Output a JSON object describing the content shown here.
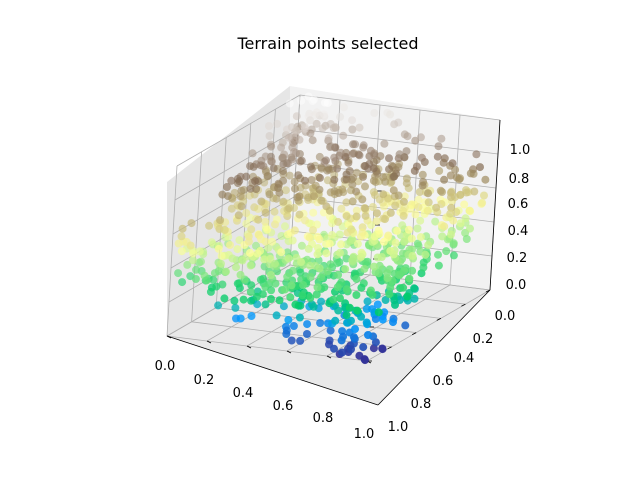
{
  "chart_data": {
    "type": "scatter",
    "title": "Terrain points selected",
    "xlabel": "",
    "ylabel": "",
    "zlabel": "",
    "xlim": [
      0.0,
      1.0
    ],
    "ylim": [
      0.0,
      1.0
    ],
    "zlim": [
      0.0,
      1.0
    ],
    "x_ticks": [
      "0.0",
      "0.2",
      "0.4",
      "0.6",
      "0.8",
      "1.0"
    ],
    "y_ticks": [
      "0.0",
      "0.2",
      "0.4",
      "0.6",
      "0.8",
      "1.0"
    ],
    "z_ticks": [
      "0.0",
      "0.2",
      "0.4",
      "0.6",
      "0.8",
      "1.0"
    ],
    "grid": true,
    "colormap": "terrain",
    "colormap_stops": [
      {
        "v": 0.0,
        "color": "#333399"
      },
      {
        "v": 0.15,
        "color": "#0099ff"
      },
      {
        "v": 0.25,
        "color": "#00cc66"
      },
      {
        "v": 0.5,
        "color": "#ffff99"
      },
      {
        "v": 0.75,
        "color": "#806650"
      },
      {
        "v": 1.0,
        "color": "#ffffff"
      }
    ],
    "point_count": 1000,
    "series": [
      {
        "x": [
          0.05,
          0.1,
          0.15,
          0.22,
          0.3,
          0.35,
          0.42,
          0.5,
          0.55,
          0.62,
          0.7,
          0.75,
          0.82,
          0.9,
          0.95,
          0.08,
          0.18,
          0.28,
          0.38,
          0.48,
          0.58,
          0.68,
          0.78,
          0.88,
          0.12,
          0.25,
          0.45,
          0.65,
          0.85,
          0.33
        ],
        "y": [
          0.05,
          0.12,
          0.2,
          0.08,
          0.15,
          0.25,
          0.1,
          0.05,
          0.3,
          0.18,
          0.22,
          0.4,
          0.35,
          0.28,
          0.45,
          0.55,
          0.48,
          0.62,
          0.58,
          0.7,
          0.65,
          0.75,
          0.6,
          0.8,
          0.85,
          0.9,
          0.78,
          0.88,
          0.92,
          0.7
        ],
        "z": [
          0.95,
          0.88,
          0.85,
          0.8,
          0.78,
          0.72,
          0.7,
          0.66,
          0.62,
          0.6,
          0.55,
          0.5,
          0.48,
          0.45,
          0.42,
          0.4,
          0.36,
          0.32,
          0.3,
          0.28,
          0.25,
          0.22,
          0.2,
          0.18,
          0.15,
          0.12,
          0.1,
          0.08,
          0.05,
          0.35
        ]
      }
    ]
  }
}
